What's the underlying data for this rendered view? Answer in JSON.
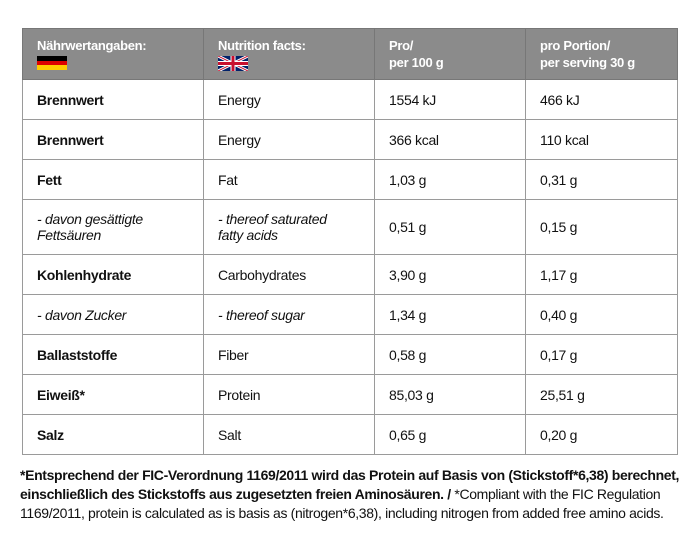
{
  "header": [
    "Nährwertangaben:",
    "Nutrition facts:",
    [
      "Pro/",
      "per 100 g"
    ],
    [
      "pro Portion/",
      "per serving 30 g"
    ]
  ],
  "rows": [
    [
      "Brennwert",
      "Energy",
      "1554 kJ",
      "466 kJ"
    ],
    [
      "Brennwert",
      "Energy",
      "366 kcal",
      "110 kcal"
    ],
    [
      "Fett",
      "Fat",
      "1,03 g",
      "0,31 g"
    ],
    [
      [
        "- davon gesättigte",
        "Fettsäuren"
      ],
      [
        "- thereof saturated",
        "fatty acids"
      ],
      "0,51 g",
      "0,15 g"
    ],
    [
      "Kohlenhydrate",
      "Carbohydrates",
      "3,90 g",
      "1,17 g"
    ],
    [
      "- davon Zucker",
      "- thereof sugar",
      "1,34 g",
      "0,40 g"
    ],
    [
      "Ballaststoffe",
      "Fiber",
      "0,58 g",
      "0,17 g"
    ],
    [
      "Eiweiß*",
      "Protein",
      "85,03 g",
      "25,51 g"
    ],
    [
      "Salz",
      "Salt",
      "0,65  g",
      "0,20 g"
    ]
  ],
  "footnote": {
    "bold": "*Entsprechend der FIC-Verordnung 1169/2011 wird das Protein auf Basis von (Stickstoff*6,38) berechnet, einschließlich des Stickstoffs aus zugesetzten freien Aminosäuren. /",
    "text": " *Compliant with the FIC Regulation 1169/2011, protein is calculated as is basis as (nitrogen*6,38), including nitrogen from added free amino acids."
  }
}
